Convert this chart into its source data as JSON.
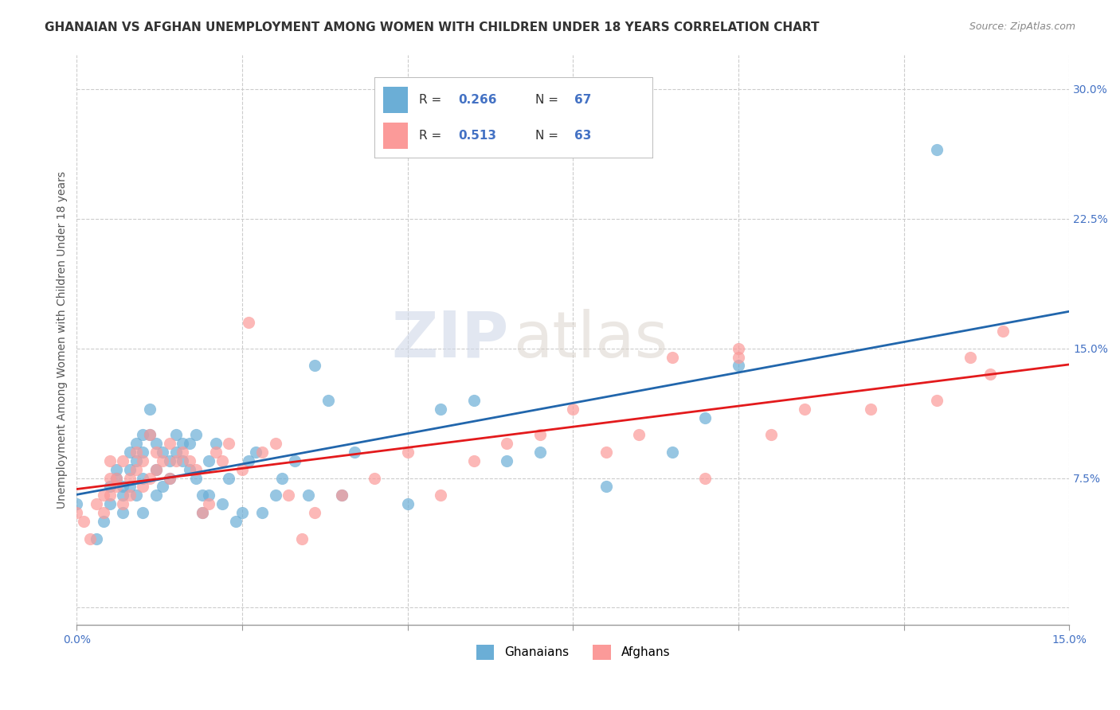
{
  "title": "GHANAIAN VS AFGHAN UNEMPLOYMENT AMONG WOMEN WITH CHILDREN UNDER 18 YEARS CORRELATION CHART",
  "source": "Source: ZipAtlas.com",
  "ylabel": "Unemployment Among Women with Children Under 18 years",
  "xlabel": "",
  "xlim": [
    0.0,
    0.15
  ],
  "ylim": [
    -0.01,
    0.32
  ],
  "xtick_vals": [
    0.0,
    0.025,
    0.05,
    0.075,
    0.1,
    0.125,
    0.15
  ],
  "xtick_labels": [
    "0.0%",
    "",
    "",
    "",
    "",
    "",
    "15.0%"
  ],
  "ytick_vals": [
    0.0,
    0.075,
    0.15,
    0.225,
    0.3
  ],
  "ytick_labels": [
    "",
    "7.5%",
    "15.0%",
    "22.5%",
    "30.0%"
  ],
  "ghanaian_color": "#6baed6",
  "afghan_color": "#fb9a99",
  "ghanaian_line_color": "#2166ac",
  "afghan_line_color": "#e31a1c",
  "legend_r1": "R = 0.266",
  "legend_n1": "N = 67",
  "legend_r2": "R = 0.513",
  "legend_n2": "N = 63",
  "watermark_zip": "ZIP",
  "watermark_atlas": "atlas",
  "background_color": "#ffffff",
  "grid_color": "#cccccc",
  "title_fontsize": 11,
  "axis_label_fontsize": 10,
  "tick_fontsize": 10,
  "ghanaian_x": [
    0.0,
    0.003,
    0.004,
    0.005,
    0.005,
    0.006,
    0.006,
    0.007,
    0.007,
    0.007,
    0.008,
    0.008,
    0.008,
    0.009,
    0.009,
    0.009,
    0.01,
    0.01,
    0.01,
    0.01,
    0.011,
    0.011,
    0.012,
    0.012,
    0.012,
    0.013,
    0.013,
    0.014,
    0.014,
    0.015,
    0.015,
    0.016,
    0.016,
    0.017,
    0.017,
    0.018,
    0.018,
    0.019,
    0.019,
    0.02,
    0.02,
    0.021,
    0.022,
    0.023,
    0.024,
    0.025,
    0.026,
    0.027,
    0.028,
    0.03,
    0.031,
    0.033,
    0.035,
    0.036,
    0.038,
    0.04,
    0.042,
    0.05,
    0.055,
    0.06,
    0.065,
    0.07,
    0.08,
    0.09,
    0.095,
    0.1,
    0.13
  ],
  "ghanaian_y": [
    0.06,
    0.04,
    0.05,
    0.07,
    0.06,
    0.075,
    0.08,
    0.065,
    0.07,
    0.055,
    0.08,
    0.09,
    0.07,
    0.085,
    0.095,
    0.065,
    0.09,
    0.1,
    0.075,
    0.055,
    0.1,
    0.115,
    0.065,
    0.08,
    0.095,
    0.09,
    0.07,
    0.085,
    0.075,
    0.1,
    0.09,
    0.085,
    0.095,
    0.095,
    0.08,
    0.1,
    0.075,
    0.065,
    0.055,
    0.065,
    0.085,
    0.095,
    0.06,
    0.075,
    0.05,
    0.055,
    0.085,
    0.09,
    0.055,
    0.065,
    0.075,
    0.085,
    0.065,
    0.14,
    0.12,
    0.065,
    0.09,
    0.06,
    0.115,
    0.12,
    0.085,
    0.09,
    0.07,
    0.09,
    0.11,
    0.14,
    0.265
  ],
  "afghan_x": [
    0.0,
    0.001,
    0.002,
    0.003,
    0.004,
    0.004,
    0.005,
    0.005,
    0.005,
    0.006,
    0.006,
    0.007,
    0.007,
    0.008,
    0.008,
    0.009,
    0.009,
    0.01,
    0.01,
    0.011,
    0.011,
    0.012,
    0.012,
    0.013,
    0.014,
    0.014,
    0.015,
    0.016,
    0.017,
    0.018,
    0.019,
    0.02,
    0.021,
    0.022,
    0.023,
    0.025,
    0.026,
    0.028,
    0.03,
    0.032,
    0.034,
    0.036,
    0.04,
    0.045,
    0.05,
    0.055,
    0.06,
    0.065,
    0.07,
    0.075,
    0.08,
    0.085,
    0.09,
    0.095,
    0.1,
    0.1,
    0.105,
    0.11,
    0.12,
    0.13,
    0.135,
    0.138,
    0.14
  ],
  "afghan_y": [
    0.055,
    0.05,
    0.04,
    0.06,
    0.065,
    0.055,
    0.065,
    0.075,
    0.085,
    0.07,
    0.075,
    0.06,
    0.085,
    0.065,
    0.075,
    0.08,
    0.09,
    0.07,
    0.085,
    0.1,
    0.075,
    0.08,
    0.09,
    0.085,
    0.095,
    0.075,
    0.085,
    0.09,
    0.085,
    0.08,
    0.055,
    0.06,
    0.09,
    0.085,
    0.095,
    0.08,
    0.165,
    0.09,
    0.095,
    0.065,
    0.04,
    0.055,
    0.065,
    0.075,
    0.09,
    0.065,
    0.085,
    0.095,
    0.1,
    0.115,
    0.09,
    0.1,
    0.145,
    0.075,
    0.15,
    0.145,
    0.1,
    0.115,
    0.115,
    0.12,
    0.145,
    0.135,
    0.16
  ]
}
